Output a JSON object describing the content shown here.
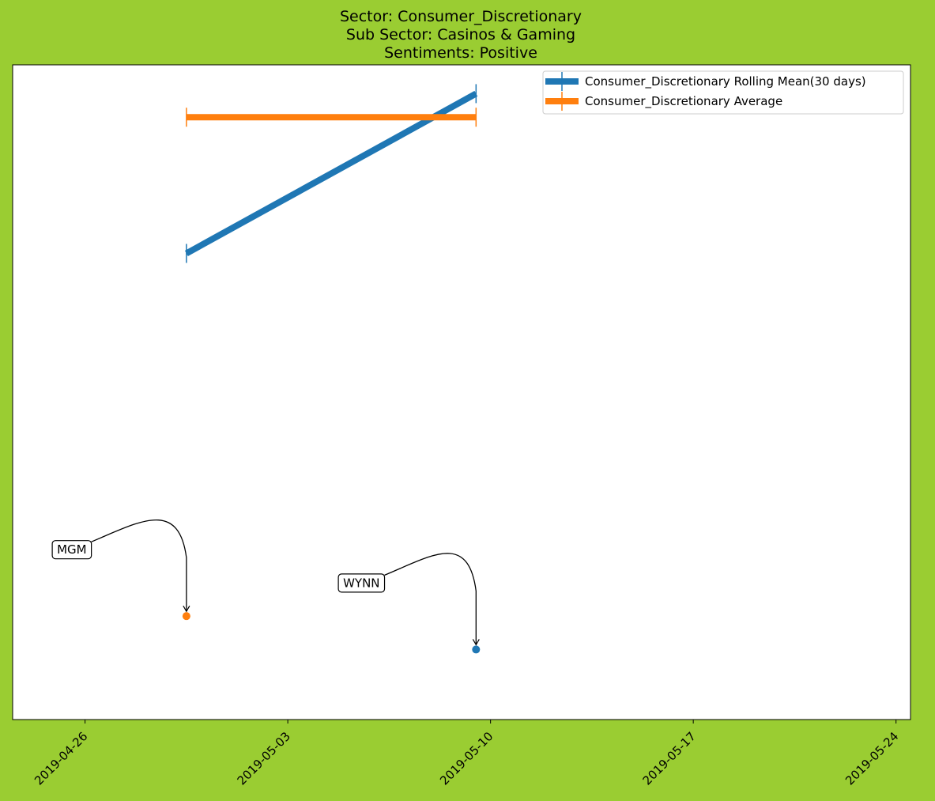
{
  "chart_data": {
    "type": "line",
    "title": [
      "Sector:  Consumer_Discretionary",
      "Sub Sector:  Casinos & Gaming",
      "Sentiments:  Positive"
    ],
    "xlabel": "",
    "ylabel": "",
    "x_axis": "date",
    "xlim": [
      "2019-04-23 12:00",
      "2019-05-24 12:00"
    ],
    "ylim": [
      0,
      100
    ],
    "x_ticks": [
      "2019-04-26",
      "2019-05-03",
      "2019-05-10",
      "2019-05-17",
      "2019-05-24"
    ],
    "y_ticks_visible": false,
    "grid": false,
    "legend_position": "upper-right",
    "series": [
      {
        "name": "Consumer_Discretionary Rolling Mean(30 days)",
        "color": "#1f77b4",
        "points": [
          {
            "x": "2019-04-29 12:00",
            "y": 71.2
          },
          {
            "x": "2019-05-09 12:00",
            "y": 95.6
          }
        ]
      },
      {
        "name": "Consumer_Discretionary Average",
        "color": "#ff7f0e",
        "points": [
          {
            "x": "2019-04-29 12:00",
            "y": 92.0
          },
          {
            "x": "2019-05-09 12:00",
            "y": 92.0
          }
        ]
      }
    ],
    "annotations": [
      {
        "label": "MGM",
        "x": "2019-04-29 12:00",
        "y": 15.8,
        "color": "#ff7f0e"
      },
      {
        "label": "WYNN",
        "x": "2019-05-09 12:00",
        "y": 10.7,
        "color": "#1f77b4"
      }
    ]
  }
}
